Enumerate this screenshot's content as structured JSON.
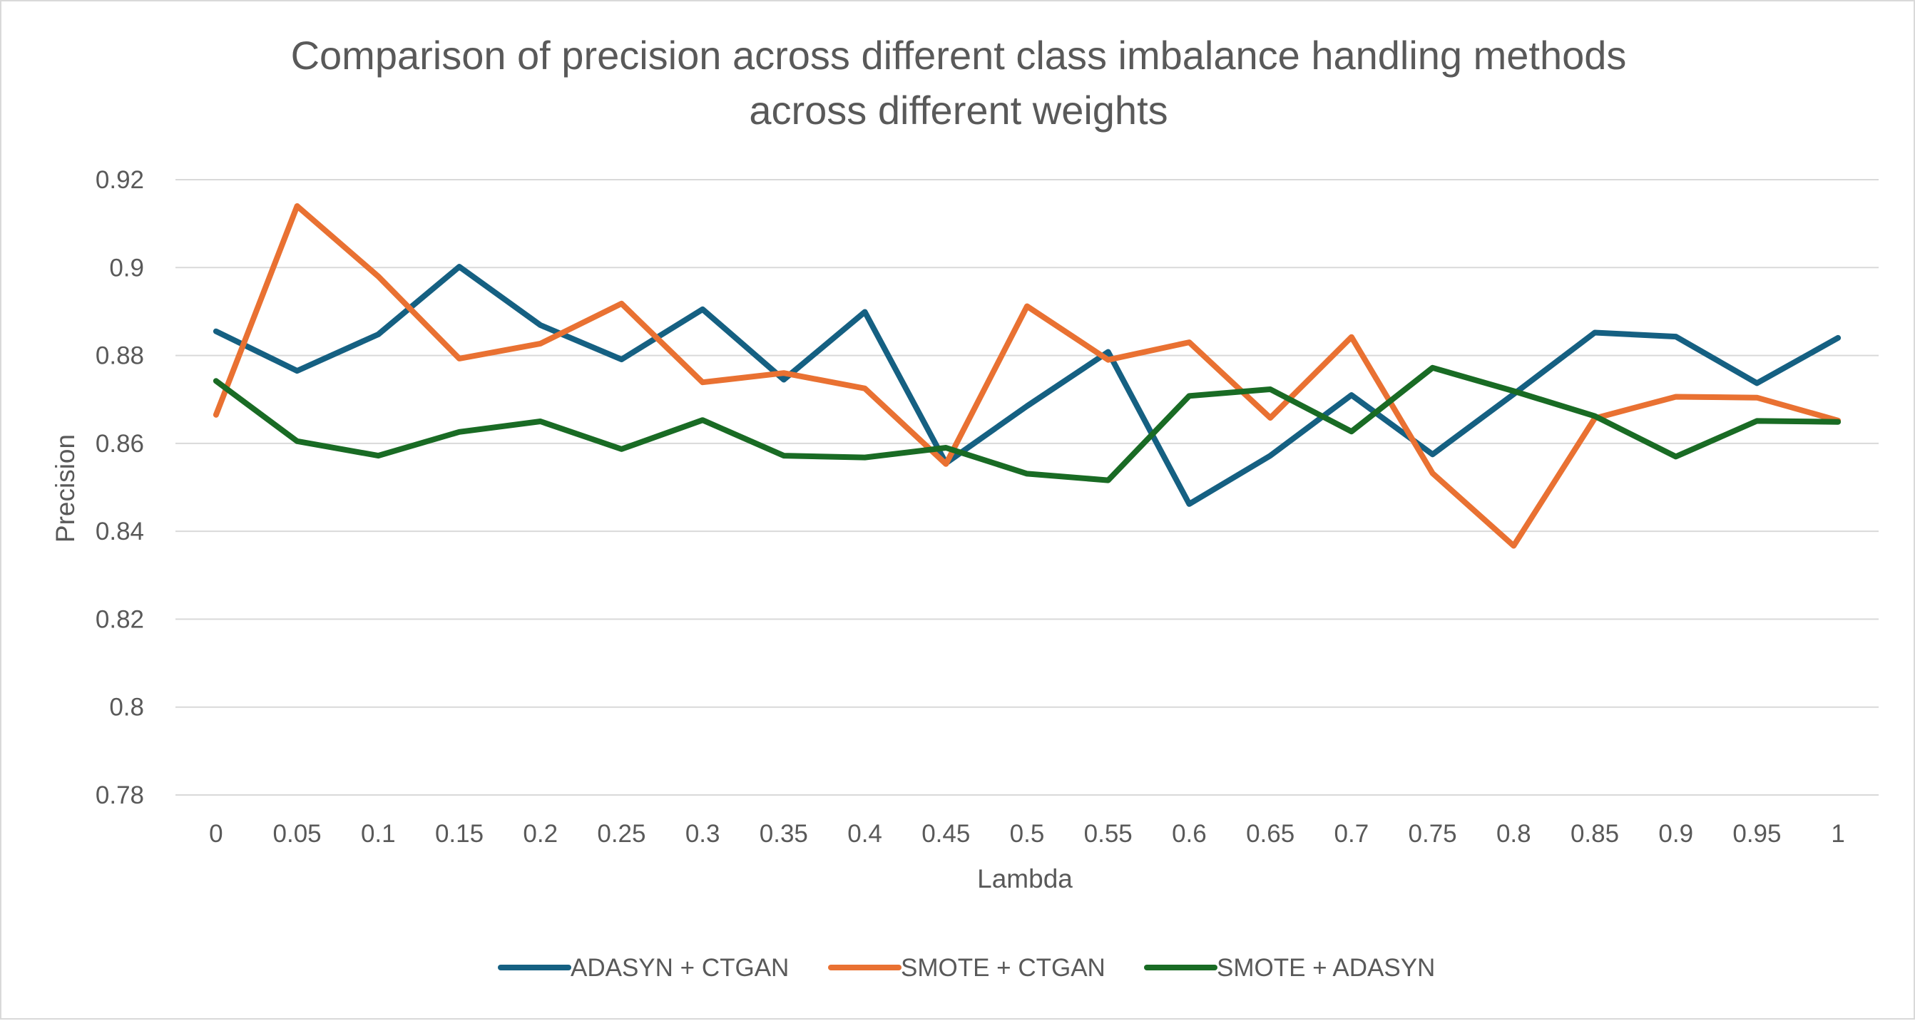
{
  "chart_data": {
    "type": "line",
    "title": "Comparison of precision across different class imbalance handling methods across different weights",
    "title_lines": [
      "Comparison of precision across different class imbalance handling methods",
      "across different weights"
    ],
    "xlabel": "Lambda",
    "ylabel": "Precision",
    "categories": [
      "0",
      "0.05",
      "0.1",
      "0.15",
      "0.2",
      "0.25",
      "0.3",
      "0.35",
      "0.4",
      "0.45",
      "0.5",
      "0.55",
      "0.6",
      "0.65",
      "0.7",
      "0.75",
      "0.8",
      "0.85",
      "0.9",
      "0.95",
      "1"
    ],
    "ylim": [
      0.78,
      0.92
    ],
    "yticks": [
      0.78,
      0.8,
      0.82,
      0.84,
      0.86,
      0.88,
      0.9,
      0.92
    ],
    "ytick_labels": [
      "0.78",
      "0.8",
      "0.82",
      "0.84",
      "0.86",
      "0.88",
      "0.9",
      "0.92"
    ],
    "grid": true,
    "legend_position": "bottom",
    "series": [
      {
        "name": "ADASYN + CTGAN",
        "color": "#156082",
        "values": [
          0.8855,
          0.8765,
          0.8848,
          0.9002,
          0.8869,
          0.8791,
          0.8905,
          0.8745,
          0.8899,
          0.8555,
          0.8685,
          0.8808,
          0.8462,
          0.8572,
          0.871,
          0.8575,
          0.8712,
          0.8852,
          0.8843,
          0.8737,
          0.884
        ]
      },
      {
        "name": "SMOTE + CTGAN",
        "color": "#e97132",
        "values": [
          0.8665,
          0.914,
          0.898,
          0.8793,
          0.8827,
          0.8918,
          0.8739,
          0.876,
          0.8725,
          0.8553,
          0.8912,
          0.879,
          0.883,
          0.8658,
          0.8842,
          0.8532,
          0.8367,
          0.8657,
          0.8706,
          0.8704,
          0.8652
        ]
      },
      {
        "name": "SMOTE + ADASYN",
        "color": "#196b24",
        "values": [
          0.8742,
          0.8605,
          0.8572,
          0.8626,
          0.865,
          0.8587,
          0.8653,
          0.8572,
          0.8568,
          0.859,
          0.8531,
          0.8516,
          0.8708,
          0.8723,
          0.8627,
          0.8772,
          0.8719,
          0.8662,
          0.857,
          0.8651,
          0.8649
        ]
      }
    ]
  }
}
